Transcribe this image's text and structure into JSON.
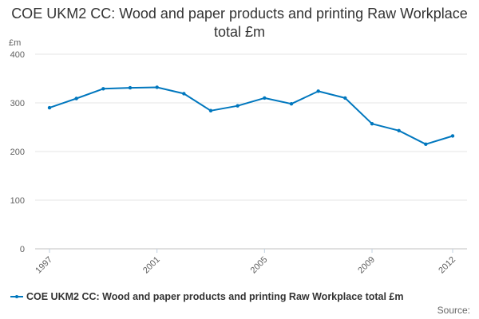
{
  "chart_data": {
    "type": "line",
    "title": "COE UKM2 CC: Wood and paper products and printing Raw Workplace total £m",
    "ylabel": "£m",
    "xlabel": "",
    "x": [
      1997,
      1998,
      1999,
      2000,
      2001,
      2002,
      2003,
      2004,
      2005,
      2006,
      2007,
      2008,
      2009,
      2010,
      2011,
      2012
    ],
    "series": [
      {
        "name": "COE UKM2 CC: Wood and paper products and printing Raw Workplace total £m",
        "values": [
          290,
          309,
          329,
          331,
          332,
          319,
          284,
          294,
          310,
          298,
          324,
          310,
          257,
          243,
          215,
          232
        ]
      }
    ],
    "ylim": [
      0,
      400
    ],
    "yticks": [
      0,
      100,
      200,
      300,
      400
    ],
    "xticks": [
      1997,
      2001,
      2005,
      2009,
      2012
    ],
    "grid": true,
    "legend": "bottom-left",
    "color": "#0077be"
  },
  "credit": "Source:"
}
